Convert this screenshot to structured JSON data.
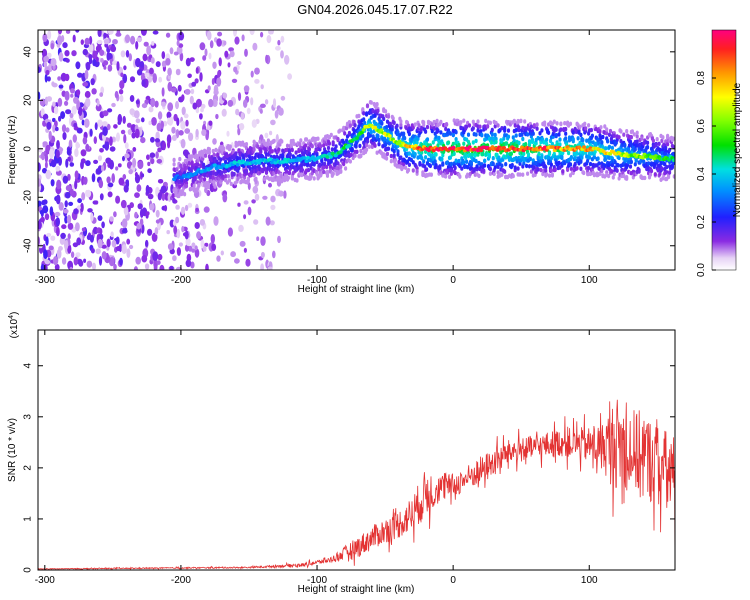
{
  "title": "GN04.2026.045.17.07.R22",
  "colors": {
    "snr_line": "#e33333",
    "axis": "#000000"
  },
  "chart_data": [
    {
      "type": "heatmap",
      "xlabel": "Height of straight line (km)",
      "ylabel": "Frequency (Hz)",
      "xlim": [
        -305,
        163
      ],
      "ylim": [
        -50,
        49
      ],
      "x_ticks": [
        "-300",
        "-200",
        "-100",
        "0",
        "100"
      ],
      "x_tick_values": [
        -300,
        -200,
        -100,
        0,
        100
      ],
      "y_ticks": [
        "-40",
        "-20",
        "0",
        "20",
        "40"
      ],
      "y_tick_values": [
        -40,
        -20,
        0,
        20,
        40
      ],
      "colorbar": {
        "label": "Normalized spectral amplitude",
        "range": [
          0,
          1
        ],
        "ticks": [
          "0.0",
          "0.2",
          "0.4",
          "0.6",
          "0.8"
        ],
        "tick_values": [
          0.0,
          0.2,
          0.4,
          0.6,
          0.8
        ]
      },
      "ridge": {
        "x": [
          -200,
          -180,
          -160,
          -140,
          -120,
          -100,
          -85,
          -70,
          -62,
          -55,
          -45,
          -35,
          -20,
          0,
          20,
          40,
          60,
          80,
          100,
          120,
          140,
          163
        ],
        "frequency": [
          -12,
          -8,
          -6,
          -5,
          -5,
          -4,
          -2,
          5,
          10,
          8,
          4,
          1,
          0,
          0,
          0,
          0,
          0,
          0,
          0,
          -2,
          -3,
          -4
        ],
        "amplitude": [
          0.3,
          0.35,
          0.4,
          0.4,
          0.4,
          0.4,
          0.45,
          0.55,
          0.7,
          0.7,
          0.65,
          0.75,
          0.9,
          0.95,
          0.95,
          0.95,
          0.9,
          0.85,
          0.8,
          0.7,
          0.6,
          0.5
        ]
      },
      "noise_region_x": [
        -305,
        -120
      ]
    },
    {
      "type": "line",
      "xlabel": "Height of straight line (km)",
      "ylabel": "SNR (10 * v/v)",
      "y_scale_label": "(x10",
      "y_scale_exp": "4",
      "xlim": [
        -305,
        163
      ],
      "ylim": [
        0,
        4.7
      ],
      "x_ticks": [
        "-300",
        "-200",
        "-100",
        "0",
        "100"
      ],
      "x_tick_values": [
        -300,
        -200,
        -100,
        0,
        100
      ],
      "y_ticks": [
        "0",
        "1",
        "2",
        "3",
        "4"
      ],
      "y_tick_values": [
        0,
        1,
        2,
        3,
        4
      ],
      "series": [
        {
          "x": [
            -305,
            -150,
            -110,
            -90,
            -70,
            -55,
            -40,
            -30,
            -20,
            -10,
            0,
            10,
            20,
            30,
            40,
            60,
            80,
            100,
            110,
            120,
            130,
            140,
            150,
            163
          ],
          "value": [
            0.02,
            0.05,
            0.1,
            0.2,
            0.45,
            0.7,
            0.9,
            1.1,
            1.5,
            1.6,
            1.65,
            1.8,
            1.95,
            2.1,
            2.3,
            2.4,
            2.5,
            2.45,
            2.4,
            2.5,
            2.35,
            2.2,
            2.1,
            1.8
          ],
          "spread": [
            0.01,
            0.02,
            0.05,
            0.08,
            0.3,
            0.35,
            0.4,
            0.5,
            0.7,
            0.4,
            0.35,
            0.35,
            0.4,
            0.4,
            0.35,
            0.35,
            0.4,
            0.5,
            0.7,
            1.3,
            1.2,
            1.3,
            1.1,
            1.2
          ]
        }
      ]
    }
  ]
}
